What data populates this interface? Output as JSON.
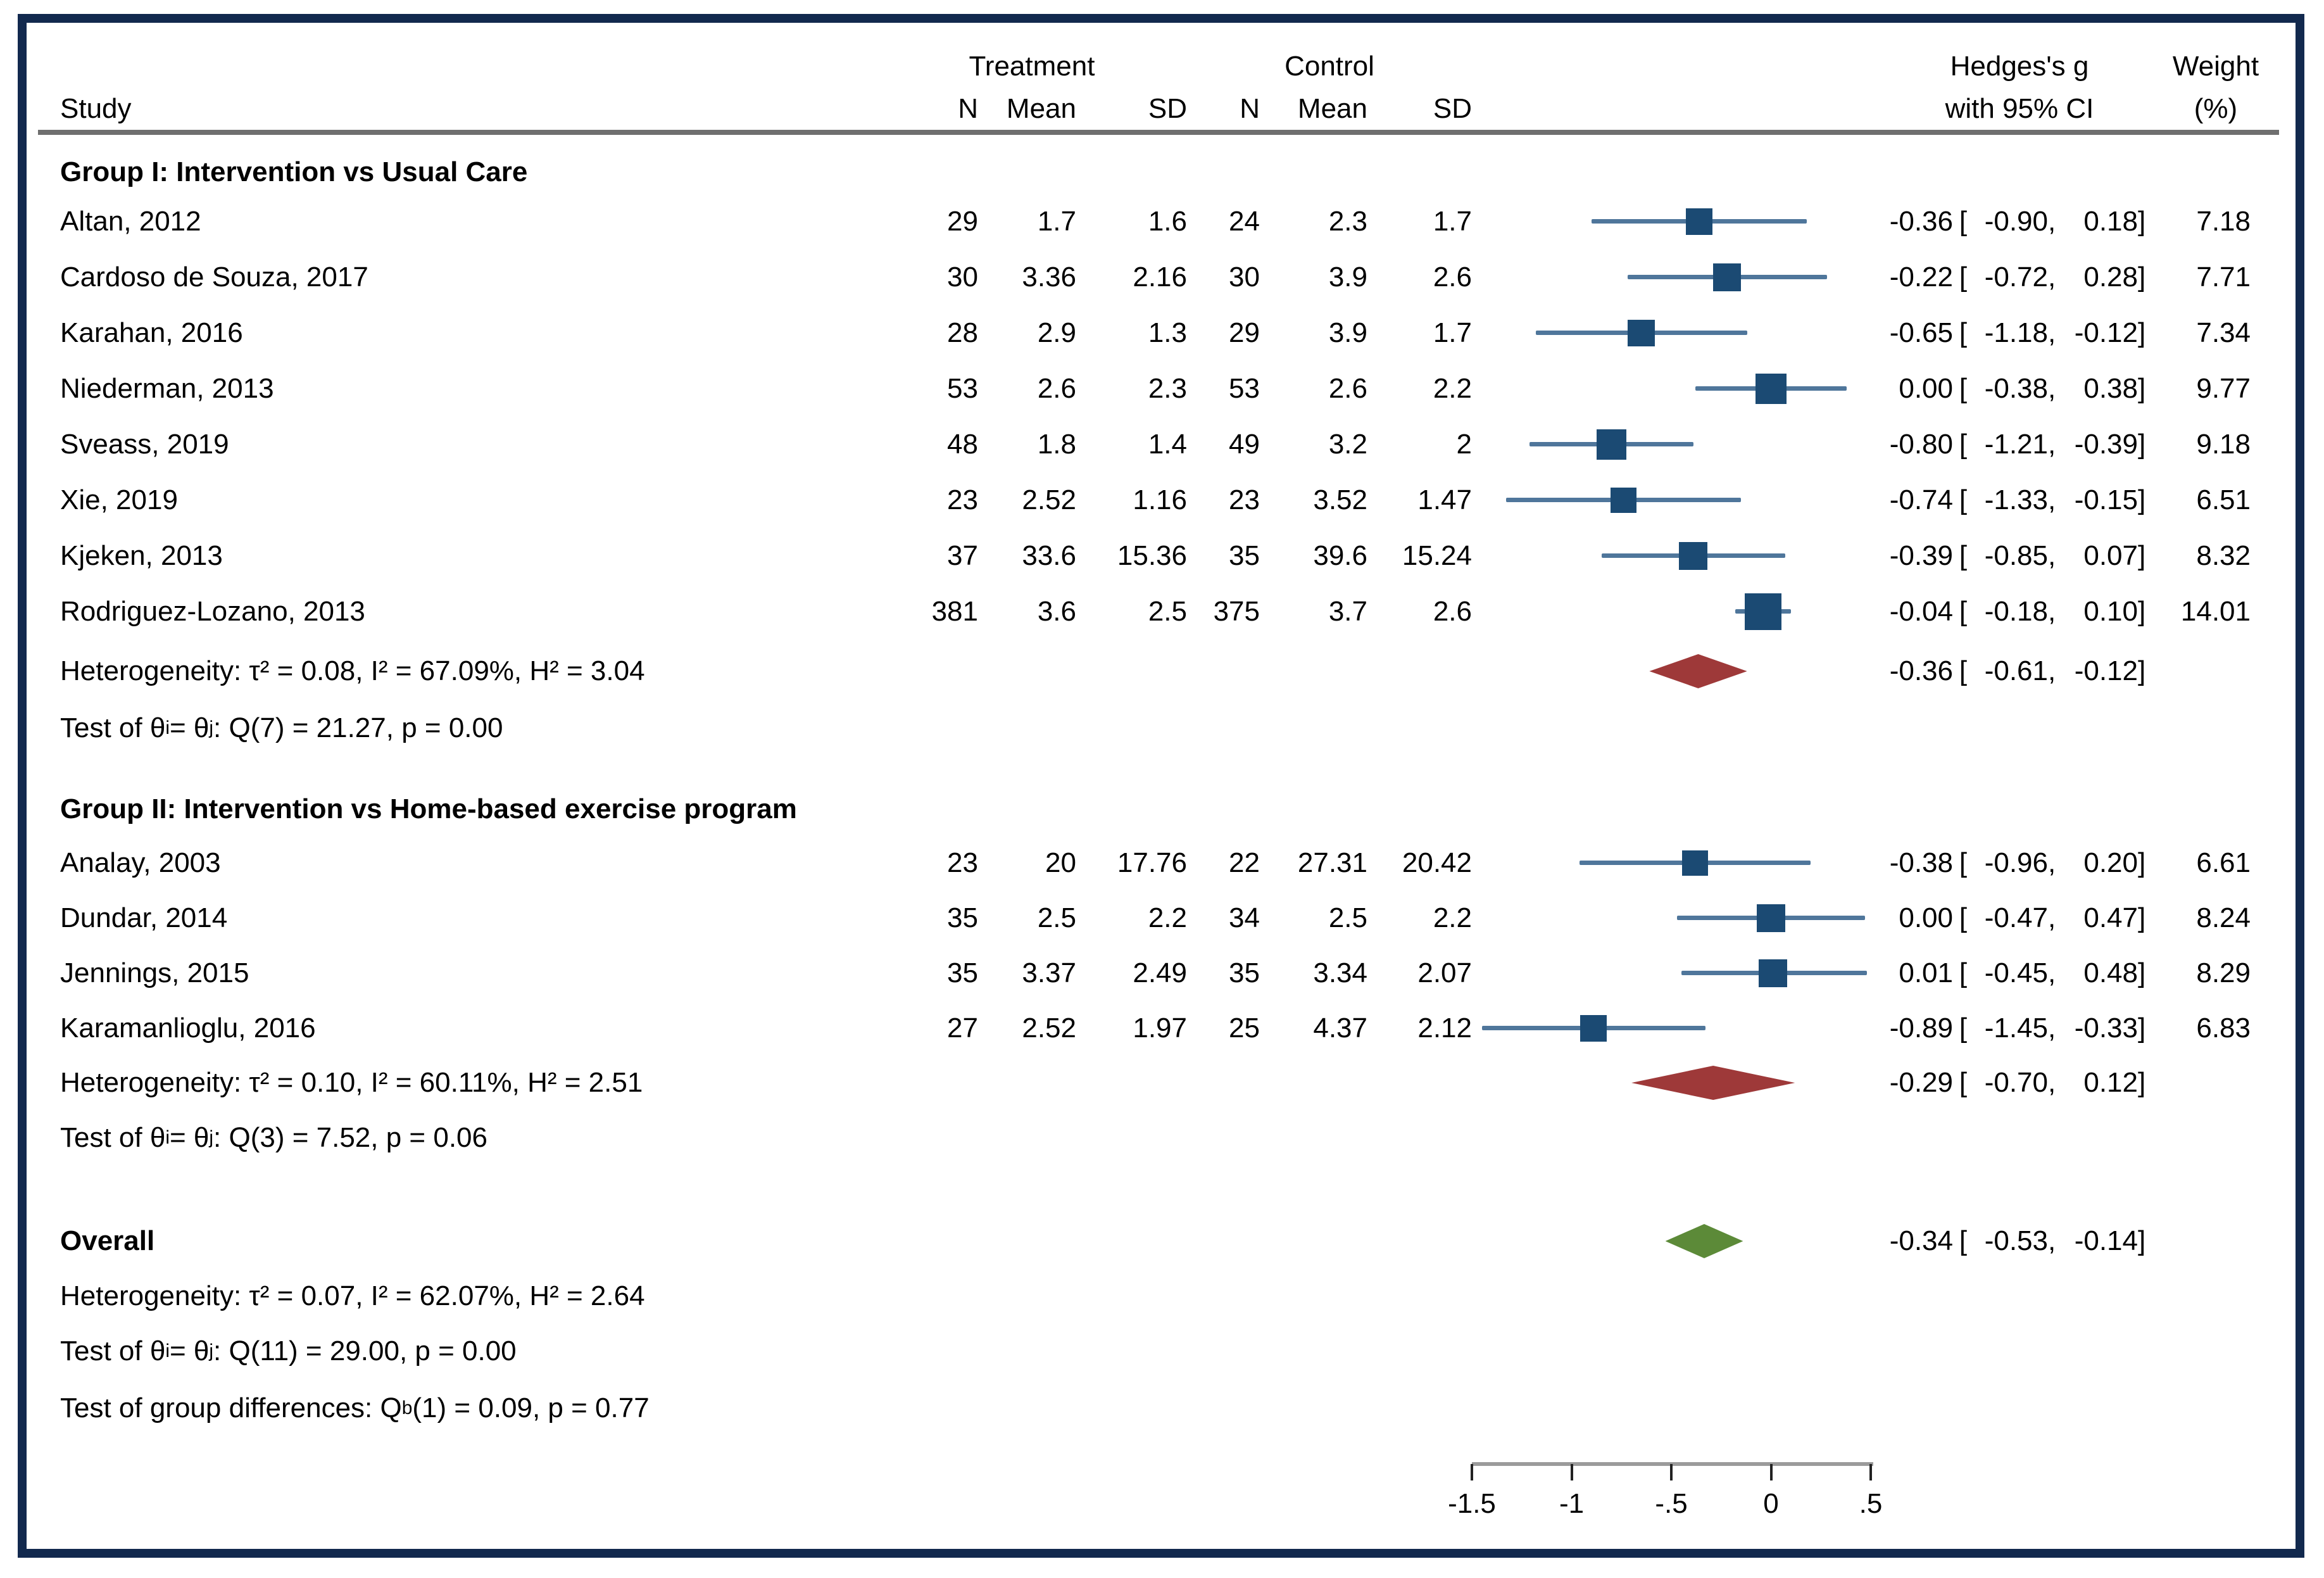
{
  "chart_data": {
    "type": "forest",
    "header": {
      "study_label": "Study",
      "treatment_label": "Treatment",
      "control_label": "Control",
      "n_label": "N",
      "mean_label": "Mean",
      "sd_label": "SD",
      "effect_label": "Hedges's g",
      "ci_label": "with 95% CI",
      "weight_label": "Weight",
      "weight_unit": "(%)"
    },
    "axis": {
      "min": -1.5,
      "max": 0.5,
      "ticks": [
        {
          "v": -1.5,
          "label": "-1.5"
        },
        {
          "v": -1.0,
          "label": "-1"
        },
        {
          "v": -0.5,
          "label": "-.5"
        },
        {
          "v": 0.0,
          "label": "0"
        },
        {
          "v": 0.5,
          "label": ".5"
        }
      ]
    },
    "colors": {
      "square": "#1b4a73",
      "ci_line": "#4f769b",
      "group_diamond": "#9e3939",
      "overall_diamond": "#5c8a38",
      "border": "#12294e",
      "rule": "#6f6f6f",
      "axis_line": "#9b9b9b",
      "tick": "#222222"
    },
    "groups": [
      {
        "title": "Group I: Intervention vs Usual Care",
        "studies": [
          {
            "name": "Altan, 2012",
            "t_n": "29",
            "t_mean": "1.7",
            "t_sd": "1.6",
            "c_n": "24",
            "c_mean": "2.3",
            "c_sd": "1.7",
            "g": -0.36,
            "lo": -0.9,
            "hi": 0.18,
            "est": "-0.36",
            "lo_s": "-0.90",
            "hi_s": "0.18",
            "weight": "7.18",
            "w": 7.18
          },
          {
            "name": "Cardoso de Souza, 2017",
            "t_n": "30",
            "t_mean": "3.36",
            "t_sd": "2.16",
            "c_n": "30",
            "c_mean": "3.9",
            "c_sd": "2.6",
            "g": -0.22,
            "lo": -0.72,
            "hi": 0.28,
            "est": "-0.22",
            "lo_s": "-0.72",
            "hi_s": "0.28",
            "weight": "7.71",
            "w": 7.71
          },
          {
            "name": "Karahan, 2016",
            "t_n": "28",
            "t_mean": "2.9",
            "t_sd": "1.3",
            "c_n": "29",
            "c_mean": "3.9",
            "c_sd": "1.7",
            "g": -0.65,
            "lo": -1.18,
            "hi": -0.12,
            "est": "-0.65",
            "lo_s": "-1.18",
            "hi_s": "-0.12",
            "weight": "7.34",
            "w": 7.34
          },
          {
            "name": "Niederman, 2013",
            "t_n": "53",
            "t_mean": "2.6",
            "t_sd": "2.3",
            "c_n": "53",
            "c_mean": "2.6",
            "c_sd": "2.2",
            "g": 0.0,
            "lo": -0.38,
            "hi": 0.38,
            "est": "0.00",
            "lo_s": "-0.38",
            "hi_s": "0.38",
            "weight": "9.77",
            "w": 9.77
          },
          {
            "name": "Sveass, 2019",
            "t_n": "48",
            "t_mean": "1.8",
            "t_sd": "1.4",
            "c_n": "49",
            "c_mean": "3.2",
            "c_sd": "2",
            "g": -0.8,
            "lo": -1.21,
            "hi": -0.39,
            "est": "-0.80",
            "lo_s": "-1.21",
            "hi_s": "-0.39",
            "weight": "9.18",
            "w": 9.18
          },
          {
            "name": "Xie, 2019",
            "t_n": "23",
            "t_mean": "2.52",
            "t_sd": "1.16",
            "c_n": "23",
            "c_mean": "3.52",
            "c_sd": "1.47",
            "g": -0.74,
            "lo": -1.33,
            "hi": -0.15,
            "est": "-0.74",
            "lo_s": "-1.33",
            "hi_s": "-0.15",
            "weight": "6.51",
            "w": 6.51
          },
          {
            "name": "Kjeken, 2013",
            "t_n": "37",
            "t_mean": "33.6",
            "t_sd": "15.36",
            "c_n": "35",
            "c_mean": "39.6",
            "c_sd": "15.24",
            "g": -0.39,
            "lo": -0.85,
            "hi": 0.07,
            "est": "-0.39",
            "lo_s": "-0.85",
            "hi_s": "0.07",
            "weight": "8.32",
            "w": 8.32
          },
          {
            "name": "Rodriguez-Lozano, 2013",
            "t_n": "381",
            "t_mean": "3.6",
            "t_sd": "2.5",
            "c_n": "375",
            "c_mean": "3.7",
            "c_sd": "2.6",
            "g": -0.04,
            "lo": -0.18,
            "hi": 0.1,
            "est": "-0.04",
            "lo_s": "-0.18",
            "hi_s": "0.10",
            "weight": "14.01",
            "w": 14.01
          }
        ],
        "het_text": "Heterogeneity: τ² = 0.08, I² = 67.09%, H² = 3.04",
        "pooled": {
          "lo": -0.61,
          "hi": -0.12,
          "est": "-0.36",
          "lo_s": "-0.61",
          "hi_s": "-0.12"
        },
        "test": {
          "pre": "Test of θ",
          "sub1": "i",
          "mid": " = θ",
          "sub2": "j",
          "post": ": Q(7) = 21.27, p = 0.00"
        }
      },
      {
        "title": "Group II: Intervention vs Home-based exercise program",
        "studies": [
          {
            "name": "Analay, 2003",
            "t_n": "23",
            "t_mean": "20",
            "t_sd": "17.76",
            "c_n": "22",
            "c_mean": "27.31",
            "c_sd": "20.42",
            "g": -0.38,
            "lo": -0.96,
            "hi": 0.2,
            "est": "-0.38",
            "lo_s": "-0.96",
            "hi_s": "0.20",
            "weight": "6.61",
            "w": 6.61
          },
          {
            "name": "Dundar, 2014",
            "t_n": "35",
            "t_mean": "2.5",
            "t_sd": "2.2",
            "c_n": "34",
            "c_mean": "2.5",
            "c_sd": "2.2",
            "g": 0.0,
            "lo": -0.47,
            "hi": 0.47,
            "est": "0.00",
            "lo_s": "-0.47",
            "hi_s": "0.47",
            "weight": "8.24",
            "w": 8.24
          },
          {
            "name": "Jennings, 2015",
            "t_n": "35",
            "t_mean": "3.37",
            "t_sd": "2.49",
            "c_n": "35",
            "c_mean": "3.34",
            "c_sd": "2.07",
            "g": 0.01,
            "lo": -0.45,
            "hi": 0.48,
            "est": "0.01",
            "lo_s": "-0.45",
            "hi_s": "0.48",
            "weight": "8.29",
            "w": 8.29
          },
          {
            "name": "Karamanlioglu, 2016",
            "t_n": "27",
            "t_mean": "2.52",
            "t_sd": "1.97",
            "c_n": "25",
            "c_mean": "4.37",
            "c_sd": "2.12",
            "g": -0.89,
            "lo": -1.45,
            "hi": -0.33,
            "est": "-0.89",
            "lo_s": "-1.45",
            "hi_s": "-0.33",
            "weight": "6.83",
            "w": 6.83
          }
        ],
        "het_text": "Heterogeneity: τ² = 0.10, I² = 60.11%, H² = 2.51",
        "pooled": {
          "lo": -0.7,
          "hi": 0.12,
          "est": "-0.29",
          "lo_s": "-0.70",
          "hi_s": "0.12"
        },
        "test": {
          "pre": "Test of θ",
          "sub1": "i",
          "mid": " = θ",
          "sub2": "j",
          "post": ": Q(3) = 7.52, p = 0.06"
        }
      }
    ],
    "overall": {
      "title": "Overall",
      "pooled": {
        "lo": -0.53,
        "hi": -0.14,
        "est": "-0.34",
        "lo_s": "-0.53",
        "hi_s": "-0.14"
      },
      "het_text": "Heterogeneity: τ² = 0.07, I² = 62.07%, H² = 2.64",
      "test": {
        "pre": "Test of θ",
        "sub1": "i",
        "mid": " = θ",
        "sub2": "j",
        "post": ": Q(11) = 29.00, p = 0.00"
      },
      "groupdiff": {
        "pre": "Test of group differences: Q",
        "sub": "b",
        "post": "(1) = 0.09, p = 0.77"
      }
    }
  }
}
